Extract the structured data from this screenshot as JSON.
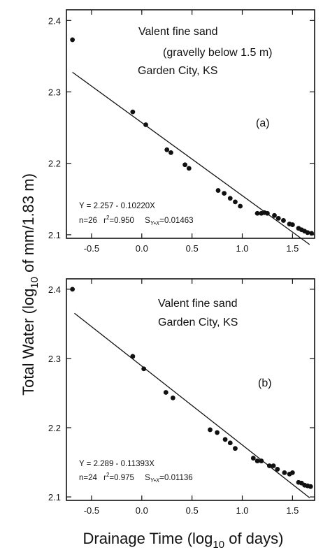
{
  "figure": {
    "ylabel_parts": [
      "Total  Water  (log",
      "10",
      " of mm/1.83 m)"
    ],
    "xlabel_parts": [
      "Drainage Time  (log",
      "10",
      " of days)"
    ]
  },
  "chart_data": [
    {
      "type": "scatter",
      "panel_label": "(a)",
      "annotation_lines": [
        "Valent fine sand",
        "(gravelly below 1.5 m)",
        "Garden City, KS"
      ],
      "equation": "Y = 2.257 - 0.10220X",
      "n_text": "n=26",
      "r2_prefix": "r",
      "r2_sup": "2",
      "r2_value": "=0.950",
      "syx_label": "S",
      "syx_sub": "Y•X",
      "syx_value": "=0.01463",
      "xlim": [
        -0.75,
        1.72
      ],
      "ylim": [
        2.095,
        2.415
      ],
      "xticks": [
        -0.5,
        0,
        0.5,
        1,
        1.5
      ],
      "xtick_labels": [
        "-0.5",
        "0.0",
        "0.5",
        "1.0",
        "1.5"
      ],
      "yticks": [
        2.1,
        2.2,
        2.3,
        2.4
      ],
      "ytick_labels": [
        "2.1",
        "2.2",
        "2.3",
        "2.4"
      ],
      "fit": {
        "intercept": 2.257,
        "slope": -0.1022,
        "x_range": [
          -0.69,
          1.67
        ]
      },
      "x": [
        -0.69,
        -0.09,
        0.04,
        0.25,
        0.29,
        0.43,
        0.47,
        0.76,
        0.82,
        0.88,
        0.93,
        0.98,
        1.15,
        1.19,
        1.22,
        1.25,
        1.32,
        1.36,
        1.41,
        1.47,
        1.5,
        1.56,
        1.59,
        1.62,
        1.65,
        1.69
      ],
      "y": [
        2.373,
        2.272,
        2.254,
        2.219,
        2.215,
        2.198,
        2.193,
        2.162,
        2.158,
        2.151,
        2.146,
        2.14,
        2.13,
        2.13,
        2.131,
        2.13,
        2.127,
        2.123,
        2.12,
        2.115,
        2.114,
        2.109,
        2.107,
        2.105,
        2.103,
        2.102
      ]
    },
    {
      "type": "scatter",
      "panel_label": "(b)",
      "annotation_lines": [
        "Valent fine sand",
        "Garden City, KS"
      ],
      "equation": "Y = 2.289 - 0.11393X",
      "n_text": "n=24",
      "r2_prefix": "r",
      "r2_sup": "2",
      "r2_value": "=0.975",
      "syx_label": "S",
      "syx_sub": "Y•X",
      "syx_value": "=0.01136",
      "xlim": [
        -0.75,
        1.72
      ],
      "ylim": [
        2.095,
        2.415
      ],
      "xticks": [
        -0.5,
        0,
        0.5,
        1,
        1.5
      ],
      "xtick_labels": [
        "-0.5",
        "0.0",
        "0.5",
        "1.0",
        "1.5"
      ],
      "yticks": [
        2.1,
        2.2,
        2.3,
        2.4
      ],
      "ytick_labels": [
        "2.1",
        "2.2",
        "2.3",
        "2.4"
      ],
      "fit": {
        "intercept": 2.289,
        "slope": -0.11393,
        "x_range": [
          -0.67,
          1.67
        ]
      },
      "x": [
        -0.69,
        -0.09,
        0.02,
        0.24,
        0.31,
        0.68,
        0.75,
        0.83,
        0.88,
        0.93,
        1.11,
        1.15,
        1.19,
        1.27,
        1.31,
        1.35,
        1.42,
        1.47,
        1.5,
        1.56,
        1.59,
        1.62,
        1.65,
        1.68
      ],
      "y": [
        2.4,
        2.303,
        2.285,
        2.251,
        2.243,
        2.197,
        2.193,
        2.183,
        2.178,
        2.17,
        2.156,
        2.152,
        2.152,
        2.145,
        2.145,
        2.14,
        2.135,
        2.133,
        2.135,
        2.121,
        2.12,
        2.117,
        2.116,
        2.115
      ]
    }
  ]
}
